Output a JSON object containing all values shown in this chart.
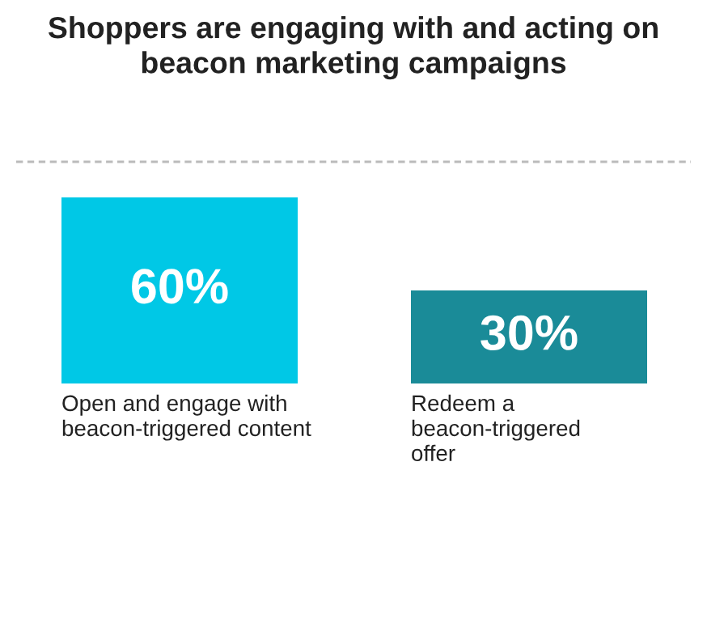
{
  "chart_data": {
    "type": "bar",
    "title": "Shoppers are engaging with and acting on\nbeacon marketing campaigns",
    "categories": [
      "Open and engage with\nbeacon-triggered content",
      "Redeem a\nbeacon-triggered\noffer"
    ],
    "values": [
      60,
      30
    ],
    "colors": [
      "#00c8e6",
      "#1a8b98"
    ],
    "value_labels": [
      "60%",
      "30%"
    ]
  }
}
